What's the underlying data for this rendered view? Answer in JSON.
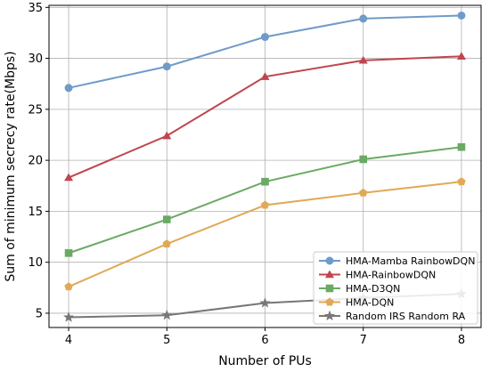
{
  "chart_data": {
    "type": "line",
    "x": [
      4,
      5,
      6,
      7,
      8
    ],
    "xlabel": "Number of PUs",
    "ylabel": "Sum of minimum secrecy rate(Mbps)",
    "xlim": [
      3.8,
      8.2
    ],
    "ylim": [
      3.6,
      35.2
    ],
    "xticks": [
      "4",
      "5",
      "6",
      "7",
      "8"
    ],
    "yticks": [
      5,
      10,
      15,
      20,
      25,
      30,
      35
    ],
    "ytick_labels": [
      "5",
      "10",
      "15",
      "20",
      "25",
      "30",
      "35"
    ],
    "grid": true,
    "legend_position": "lower-right",
    "series": [
      {
        "name": "HMA-Mamba RainbowDQN",
        "values": [
          27.1,
          29.2,
          32.1,
          33.9,
          34.2
        ],
        "color": "#6f9bc8",
        "marker": "circle"
      },
      {
        "name": "HMA-RainbowDQN",
        "values": [
          18.3,
          22.4,
          28.2,
          29.8,
          30.2
        ],
        "color": "#c0454e",
        "marker": "triangle"
      },
      {
        "name": "HMA-D3QN",
        "values": [
          10.9,
          14.2,
          17.9,
          20.1,
          21.3
        ],
        "color": "#6aaa64",
        "marker": "square"
      },
      {
        "name": "HMA-DQN",
        "values": [
          7.6,
          11.8,
          15.6,
          16.8,
          17.9
        ],
        "color": "#e0a955",
        "marker": "pentagon"
      },
      {
        "name": "Random IRS Random RA",
        "values": [
          4.6,
          4.8,
          6.0,
          6.5,
          6.9
        ],
        "color": "#777777",
        "marker": "star"
      }
    ]
  }
}
